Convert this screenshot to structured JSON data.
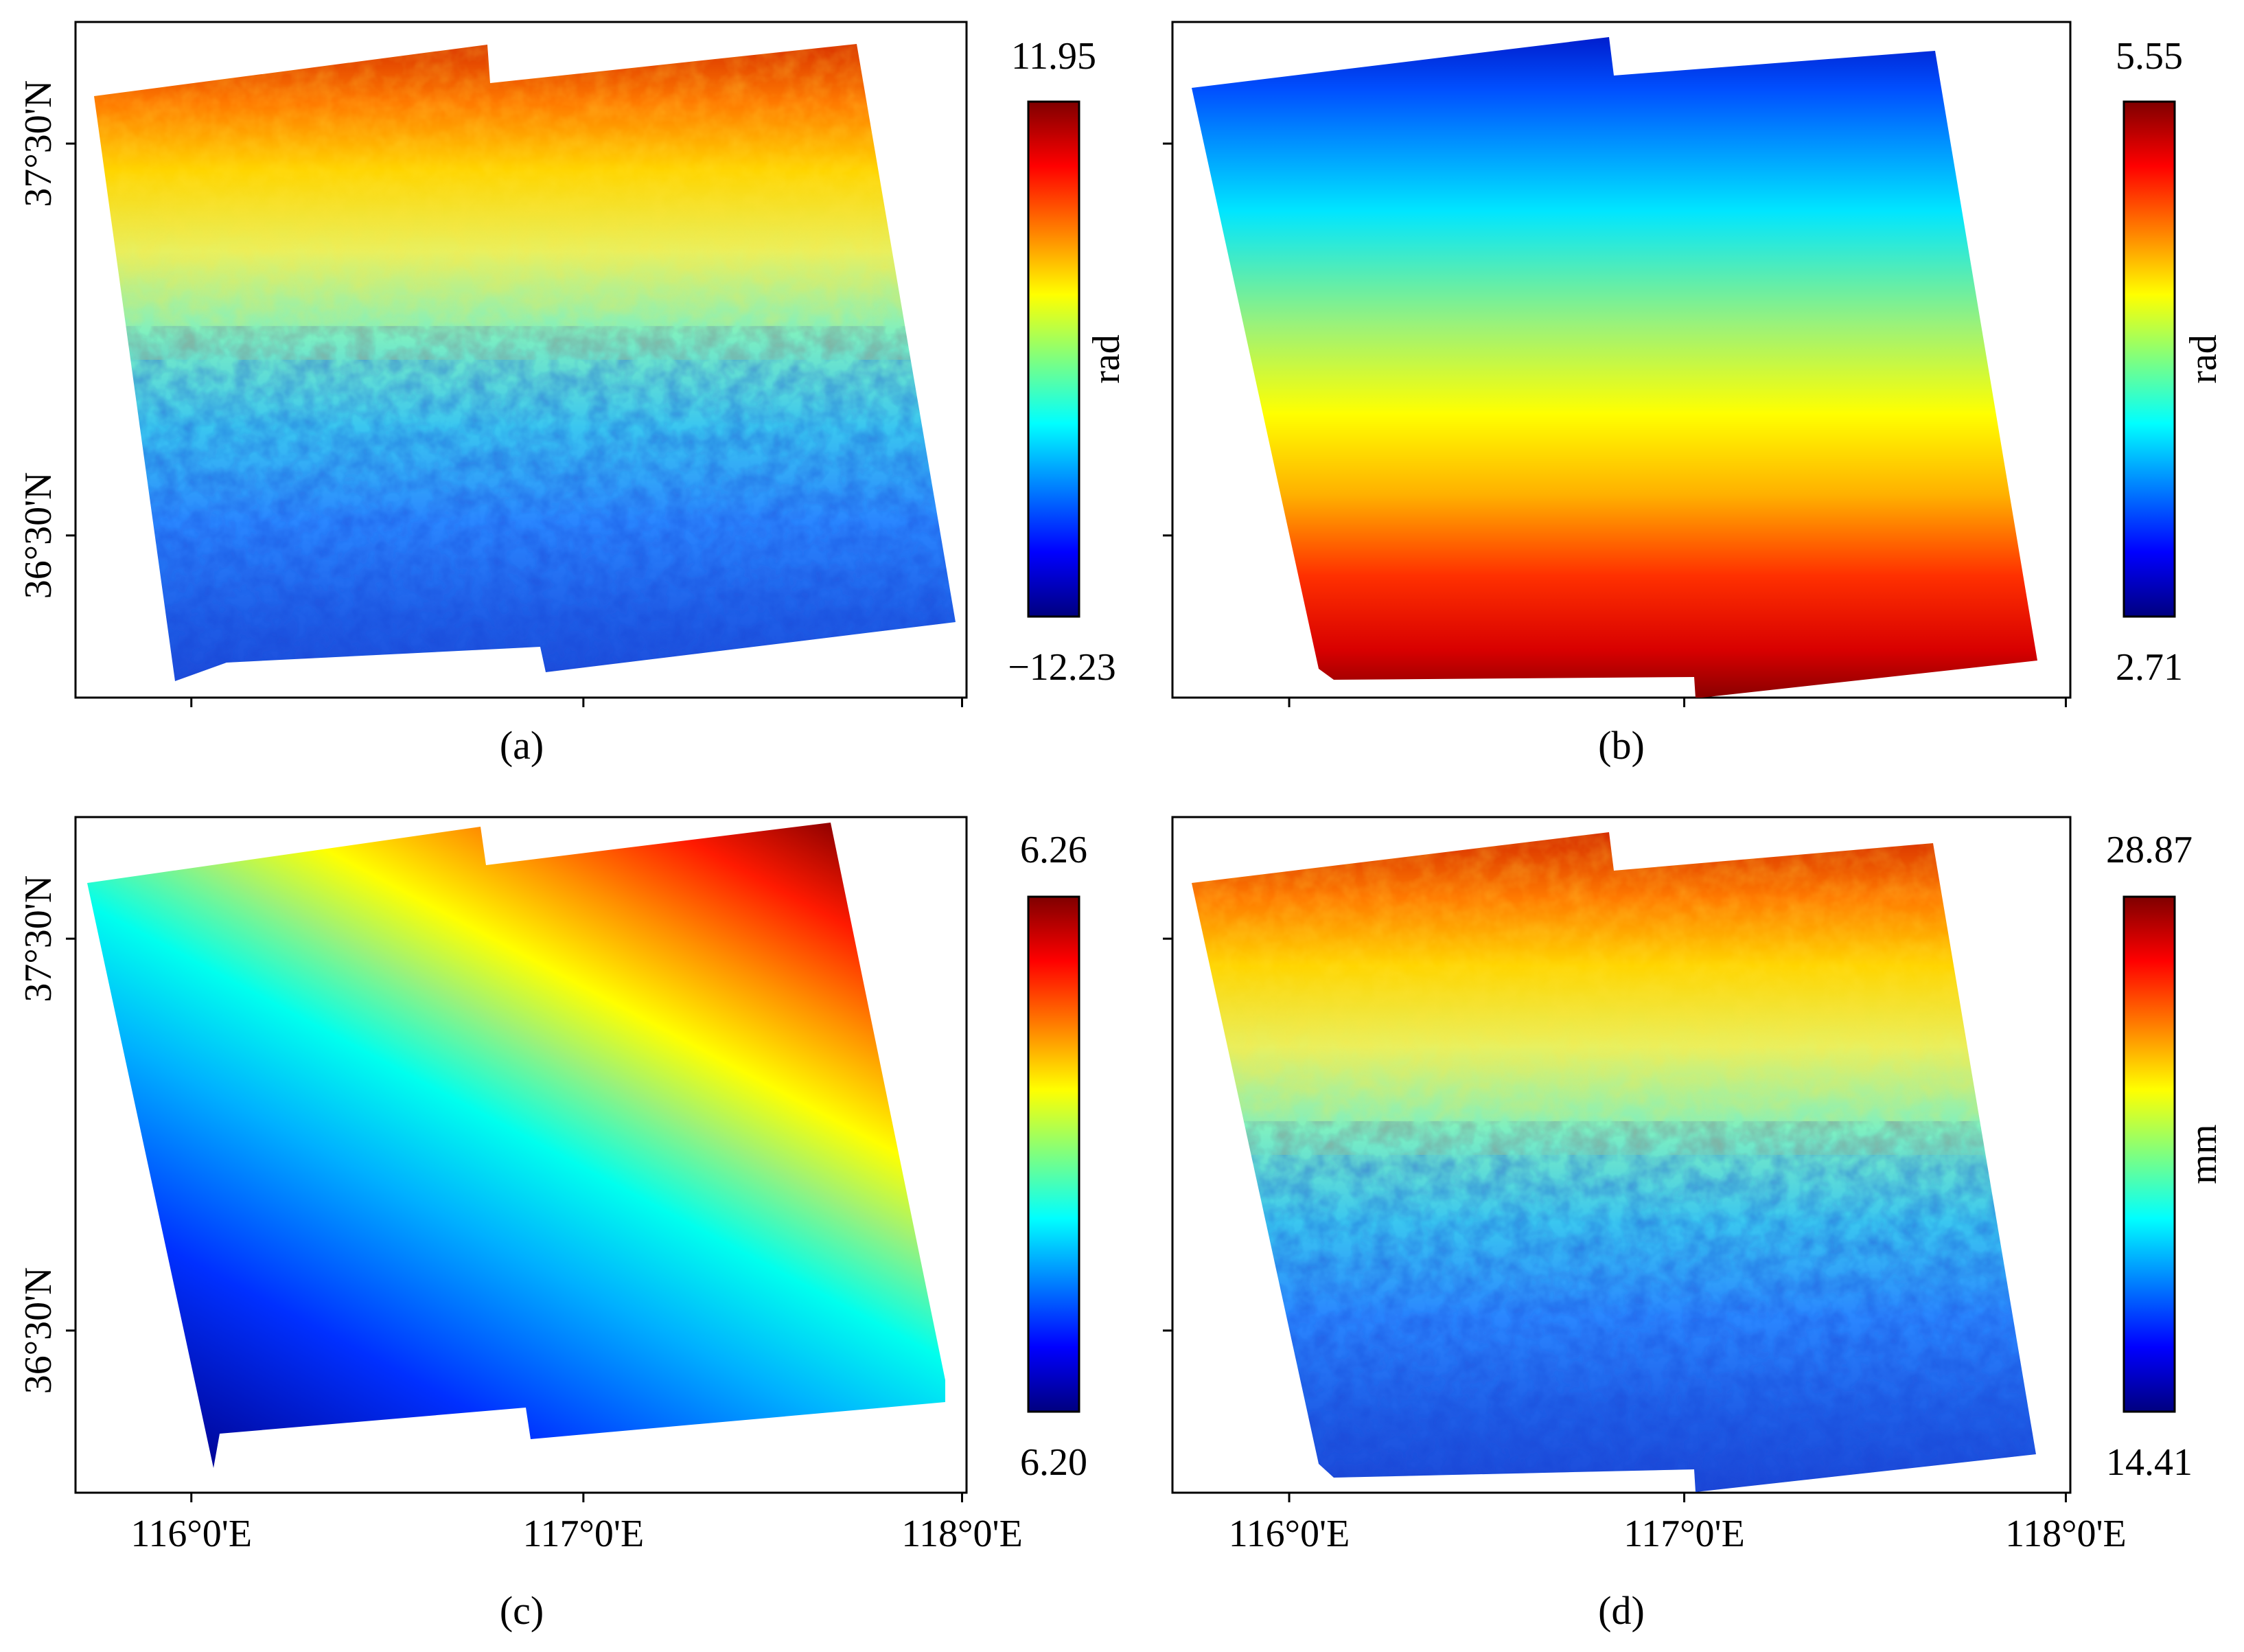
{
  "colormap": "jet",
  "colors": {
    "jet": [
      "#00007f",
      "#0000ff",
      "#007fff",
      "#00ffff",
      "#7fff7f",
      "#ffff00",
      "#ff7f00",
      "#ff0000",
      "#7f0000"
    ],
    "frame": "#000000",
    "background": "#ffffff"
  },
  "axes": {
    "lat_labels": [
      "37°30'N",
      "36°30'N"
    ],
    "lon_labels": [
      "116°0'E",
      "117°0'E",
      "118°0'E"
    ]
  },
  "panels": [
    {
      "id": "a",
      "caption": "(a)",
      "scale_max": "11.95",
      "scale_min": "−12.23",
      "unit": "rad",
      "field": "noisy",
      "show_lat": true,
      "show_lon": false
    },
    {
      "id": "b",
      "caption": "(b)",
      "scale_max": "5.55",
      "scale_min": "2.71",
      "unit": "rad",
      "field": "smooth_ns",
      "show_lat": false,
      "show_lon": false
    },
    {
      "id": "c",
      "caption": "(c)",
      "scale_max": "6.26",
      "scale_min": "6.20",
      "unit": "",
      "field": "diagonal",
      "show_lat": true,
      "show_lon": true
    },
    {
      "id": "d",
      "caption": "(d)",
      "scale_max": "28.87",
      "scale_min": "14.41",
      "unit": "mm",
      "field": "noisy",
      "show_lat": false,
      "show_lon": true
    }
  ]
}
